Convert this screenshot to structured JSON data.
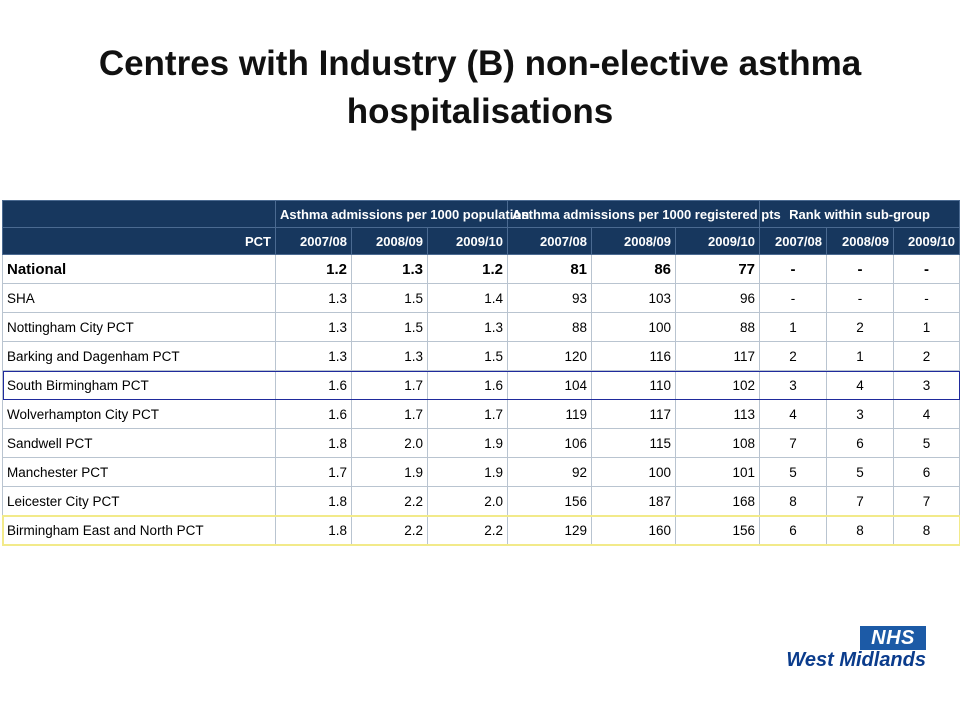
{
  "title": "Centres with Industry (B) non-elective asthma hospitalisations",
  "table": {
    "groups": [
      "Asthma admissions per 1000 population",
      "Asthma admissions per 1000 registered pts",
      "Rank within sub-group"
    ],
    "label_header": "PCT",
    "years": [
      "2007/08",
      "2008/09",
      "2009/10",
      "2007/08",
      "2008/09",
      "2009/10",
      "2007/08",
      "2008/09",
      "2009/10"
    ],
    "rows": [
      {
        "name": "National",
        "values": [
          "1.2",
          "1.3",
          "1.2",
          "81",
          "86",
          "77",
          "-",
          "-",
          "-"
        ]
      },
      {
        "name": "SHA",
        "values": [
          "1.3",
          "1.5",
          "1.4",
          "93",
          "103",
          "96",
          "-",
          "-",
          "-"
        ]
      },
      {
        "name": "Nottingham City PCT",
        "values": [
          "1.3",
          "1.5",
          "1.3",
          "88",
          "100",
          "88",
          "1",
          "2",
          "1"
        ]
      },
      {
        "name": "Barking and Dagenham PCT",
        "values": [
          "1.3",
          "1.3",
          "1.5",
          "120",
          "116",
          "117",
          "2",
          "1",
          "2"
        ]
      },
      {
        "name": "South Birmingham PCT",
        "values": [
          "1.6",
          "1.7",
          "1.6",
          "104",
          "110",
          "102",
          "3",
          "4",
          "3"
        ]
      },
      {
        "name": "Wolverhampton City PCT",
        "values": [
          "1.6",
          "1.7",
          "1.7",
          "119",
          "117",
          "113",
          "4",
          "3",
          "4"
        ]
      },
      {
        "name": "Sandwell PCT",
        "values": [
          "1.8",
          "2.0",
          "1.9",
          "106",
          "115",
          "108",
          "7",
          "6",
          "5"
        ]
      },
      {
        "name": "Manchester PCT",
        "values": [
          "1.7",
          "1.9",
          "1.9",
          "92",
          "100",
          "101",
          "5",
          "5",
          "6"
        ]
      },
      {
        "name": "Leicester City PCT",
        "values": [
          "1.8",
          "2.2",
          "2.0",
          "156",
          "187",
          "168",
          "8",
          "7",
          "7"
        ]
      },
      {
        "name": "Birmingham East and North PCT",
        "values": [
          "1.8",
          "2.2",
          "2.2",
          "129",
          "160",
          "156",
          "6",
          "8",
          "8"
        ]
      }
    ],
    "highlight_colors": {
      "south_birmingham": "#1f2a9c",
      "birmingham_east_north": "#f2ea8a"
    }
  },
  "logo": {
    "nhs": "NHS",
    "region": "West Midlands",
    "color": "#1c5aa6"
  }
}
